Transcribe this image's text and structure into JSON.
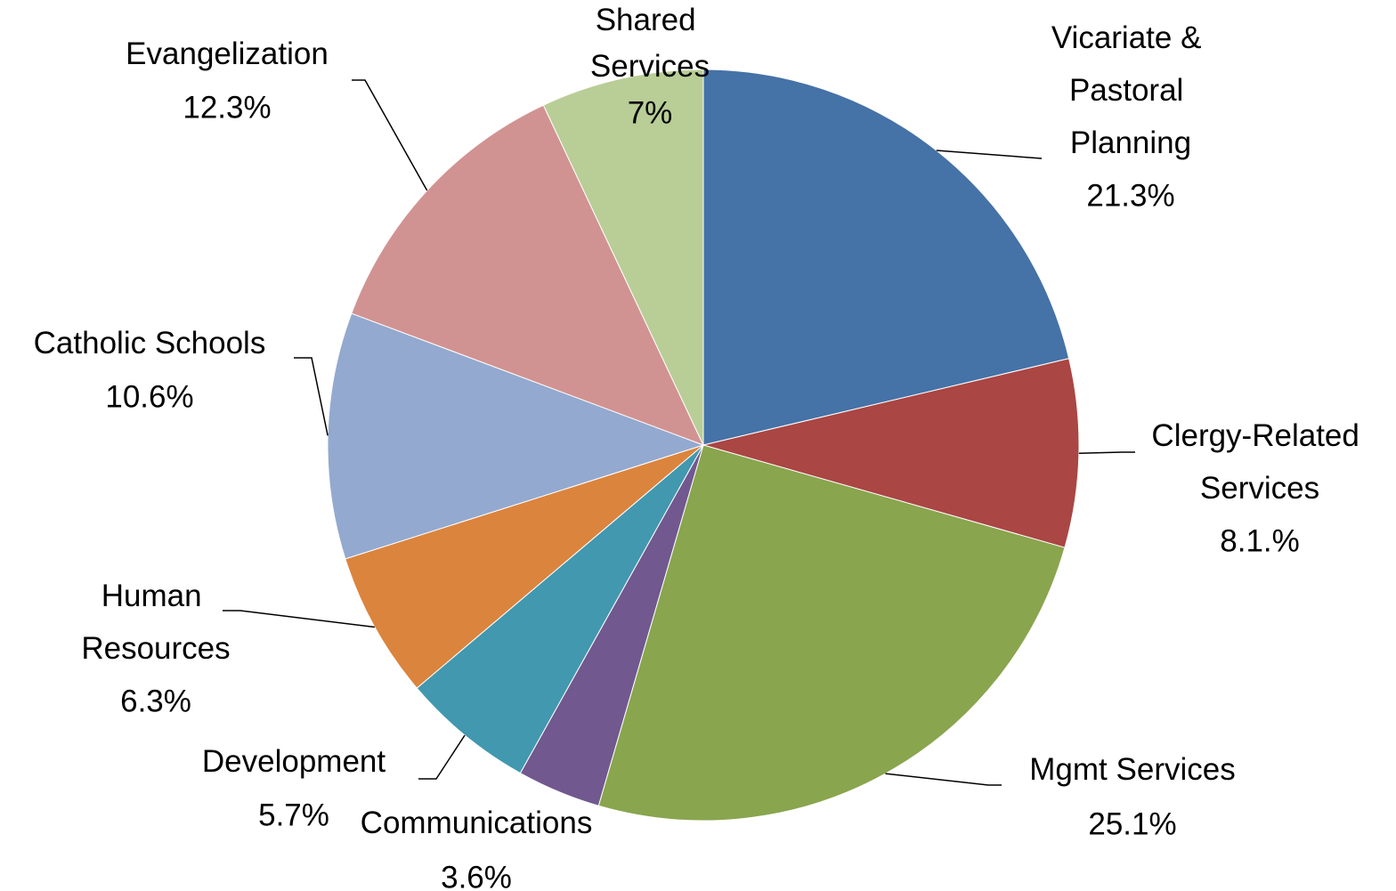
{
  "chart_data": {
    "type": "pie",
    "categories": [
      "Vicariate & Pastoral Planning",
      "Clergy-Related Services",
      "Mgmt Services",
      "Communications",
      "Development",
      "Human Resources",
      "Catholic Schools",
      "Evangelization",
      "Shared Services"
    ],
    "values": [
      21.3,
      8.1,
      25.1,
      3.6,
      5.7,
      6.3,
      10.6,
      12.3,
      7
    ],
    "value_labels": [
      "21.3%",
      "8.1.%",
      "25.1%",
      "3.6%",
      "5.7%",
      "6.3%",
      "10.6%",
      "12.3%",
      "7%"
    ],
    "colors": [
      "#4572a7",
      "#aa4643",
      "#89a54e",
      "#71588f",
      "#4198af",
      "#db843d",
      "#93a9cf",
      "#d19392",
      "#b9cd96"
    ]
  }
}
